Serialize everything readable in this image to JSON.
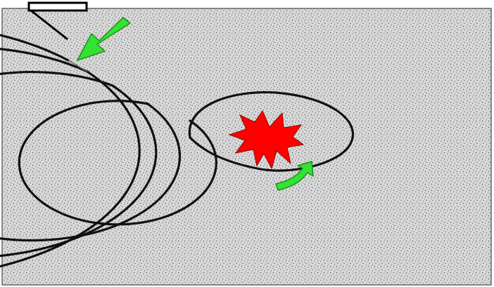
{
  "colors": {
    "background": "#ffffff",
    "ground": "#d9d9d9",
    "speckle": "#555555",
    "spiral": "#111111",
    "arrow": "#33e233",
    "arrow_outline": "#1c8f1c",
    "burst": "#ff0000",
    "burst_outline": "#8b0000",
    "entrance": "#000000"
  },
  "icons": {
    "entrance": "entrance-bar-icon",
    "entry_arrow": "arrow-down-left-icon",
    "inner_arrow": "curved-arrow-up-icon",
    "center": "burst-star-icon"
  }
}
